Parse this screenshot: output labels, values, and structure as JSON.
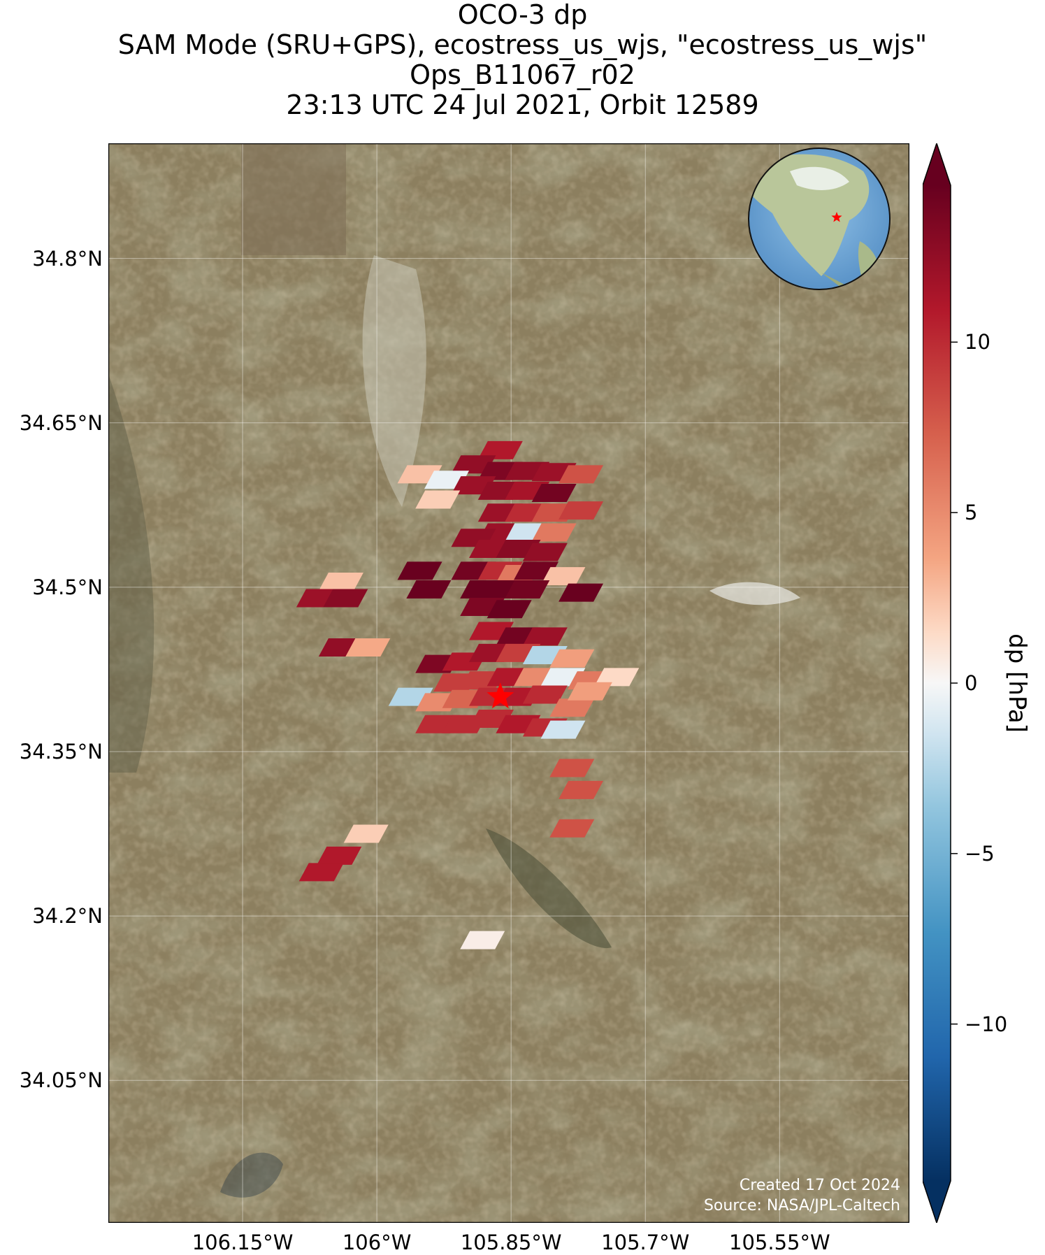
{
  "title": {
    "lines": [
      "OCO-3 dp",
      "SAM Mode (SRU+GPS), ecostress_us_wjs, \"ecostress_us_wjs\"",
      "Ops_B11067_r02",
      "23:13 UTC 24 Jul 2021, Orbit 12589"
    ]
  },
  "map": {
    "lat_ticks": [
      {
        "label": "34.8°N",
        "value": 34.8
      },
      {
        "label": "34.65°N",
        "value": 34.65
      },
      {
        "label": "34.5°N",
        "value": 34.5
      },
      {
        "label": "34.35°N",
        "value": 34.35
      },
      {
        "label": "34.2°N",
        "value": 34.2
      },
      {
        "label": "34.05°N",
        "value": 34.05
      }
    ],
    "lon_ticks": [
      {
        "label": "106.15°W",
        "value": -106.15
      },
      {
        "label": "106°W",
        "value": -106.0
      },
      {
        "label": "105.85°W",
        "value": -105.85
      },
      {
        "label": "105.7°W",
        "value": -105.7
      },
      {
        "label": "105.55°W",
        "value": -105.55
      }
    ],
    "extent": {
      "lon": [
        -106.3,
        -105.405
      ],
      "lat": [
        33.92,
        34.905
      ]
    },
    "target": {
      "lon": -105.862,
      "lat": 34.4,
      "marker": "red-star",
      "color": "#ff0000"
    },
    "basemap": "satellite-imagery",
    "grid": true,
    "inset": {
      "type": "globe",
      "center": "North America",
      "marker": "red-star"
    }
  },
  "colorbar": {
    "label": "dp [hPa]",
    "ticks": [
      {
        "label": "10",
        "value": 10
      },
      {
        "label": "5",
        "value": 5
      },
      {
        "label": "0",
        "value": 0
      },
      {
        "label": "−5",
        "value": -5
      },
      {
        "label": "−10",
        "value": -10
      }
    ],
    "range": [
      -14.6,
      14.6
    ],
    "colormap": "RdBu_r",
    "extend": "both"
  },
  "credit": {
    "created": "Created 17 Oct 2024",
    "source": "Source: NASA/JPL-Caltech"
  },
  "footprints": [
    {
      "lon": -105.862,
      "lat": 34.625,
      "dp": 11
    },
    {
      "lon": -105.892,
      "lat": 34.612,
      "dp": 12.5
    },
    {
      "lon": -105.862,
      "lat": 34.606,
      "dp": 13.5
    },
    {
      "lon": -105.832,
      "lat": 34.606,
      "dp": 12.5
    },
    {
      "lon": -105.802,
      "lat": 34.605,
      "dp": 12
    },
    {
      "lon": -105.772,
      "lat": 34.603,
      "dp": 8
    },
    {
      "lon": -105.952,
      "lat": 34.603,
      "dp": 2.5
    },
    {
      "lon": -105.922,
      "lat": 34.598,
      "dp": -0.5
    },
    {
      "lon": -105.892,
      "lat": 34.593,
      "dp": 12
    },
    {
      "lon": -105.862,
      "lat": 34.588,
      "dp": 12.5
    },
    {
      "lon": -105.832,
      "lat": 34.588,
      "dp": 11.5
    },
    {
      "lon": -105.802,
      "lat": 34.586,
      "dp": 14
    },
    {
      "lon": -105.932,
      "lat": 34.58,
      "dp": 2
    },
    {
      "lon": -105.862,
      "lat": 34.568,
      "dp": 12
    },
    {
      "lon": -105.832,
      "lat": 34.568,
      "dp": 10
    },
    {
      "lon": -105.802,
      "lat": 34.568,
      "dp": 8
    },
    {
      "lon": -105.772,
      "lat": 34.57,
      "dp": 9
    },
    {
      "lon": -105.862,
      "lat": 34.55,
      "dp": 12
    },
    {
      "lon": -105.832,
      "lat": 34.55,
      "dp": -1.5
    },
    {
      "lon": -105.802,
      "lat": 34.55,
      "dp": 6
    },
    {
      "lon": -105.892,
      "lat": 34.545,
      "dp": 12.5
    },
    {
      "lon": -105.872,
      "lat": 34.535,
      "dp": 12
    },
    {
      "lon": -105.842,
      "lat": 34.535,
      "dp": 13
    },
    {
      "lon": -105.812,
      "lat": 34.532,
      "dp": 12.5
    },
    {
      "lon": -105.892,
      "lat": 34.515,
      "dp": 14
    },
    {
      "lon": -105.862,
      "lat": 34.515,
      "dp": 10
    },
    {
      "lon": -105.842,
      "lat": 34.512,
      "dp": 6
    },
    {
      "lon": -105.822,
      "lat": 34.515,
      "dp": 14
    },
    {
      "lon": -105.792,
      "lat": 34.51,
      "dp": 2.5
    },
    {
      "lon": -105.952,
      "lat": 34.515,
      "dp": 14.5
    },
    {
      "lon": -105.882,
      "lat": 34.498,
      "dp": 14.5
    },
    {
      "lon": -105.852,
      "lat": 34.498,
      "dp": 14.5
    },
    {
      "lon": -105.832,
      "lat": 34.498,
      "dp": 14
    },
    {
      "lon": -105.772,
      "lat": 34.495,
      "dp": 14.5
    },
    {
      "lon": -105.942,
      "lat": 34.498,
      "dp": 14.5
    },
    {
      "lon": -105.882,
      "lat": 34.482,
      "dp": 13.5
    },
    {
      "lon": -105.852,
      "lat": 34.48,
      "dp": 14.5
    },
    {
      "lon": -106.04,
      "lat": 34.505,
      "dp": 2.5
    },
    {
      "lon": -106.065,
      "lat": 34.49,
      "dp": 12
    },
    {
      "lon": -106.035,
      "lat": 34.49,
      "dp": 13
    },
    {
      "lon": -106.04,
      "lat": 34.445,
      "dp": 12.5
    },
    {
      "lon": -106.01,
      "lat": 34.445,
      "dp": 3.5
    },
    {
      "lon": -105.872,
      "lat": 34.46,
      "dp": 11
    },
    {
      "lon": -105.842,
      "lat": 34.455,
      "dp": 14
    },
    {
      "lon": -105.812,
      "lat": 34.455,
      "dp": 12
    },
    {
      "lon": -105.932,
      "lat": 34.43,
      "dp": 13.5
    },
    {
      "lon": -105.902,
      "lat": 34.432,
      "dp": 11
    },
    {
      "lon": -105.872,
      "lat": 34.44,
      "dp": 12
    },
    {
      "lon": -105.842,
      "lat": 34.44,
      "dp": 9
    },
    {
      "lon": -105.812,
      "lat": 34.438,
      "dp": -2.5
    },
    {
      "lon": -105.782,
      "lat": 34.435,
      "dp": 4
    },
    {
      "lon": -105.912,
      "lat": 34.413,
      "dp": 9
    },
    {
      "lon": -105.882,
      "lat": 34.415,
      "dp": 9
    },
    {
      "lon": -105.852,
      "lat": 34.418,
      "dp": 11
    },
    {
      "lon": -105.822,
      "lat": 34.418,
      "dp": 5
    },
    {
      "lon": -105.792,
      "lat": 34.418,
      "dp": -0.5
    },
    {
      "lon": -105.762,
      "lat": 34.415,
      "dp": 6
    },
    {
      "lon": -105.732,
      "lat": 34.418,
      "dp": 1.5
    },
    {
      "lon": -105.962,
      "lat": 34.4,
      "dp": -2.5
    },
    {
      "lon": -105.932,
      "lat": 34.395,
      "dp": 5
    },
    {
      "lon": -105.902,
      "lat": 34.398,
      "dp": 7
    },
    {
      "lon": -105.872,
      "lat": 34.4,
      "dp": 10
    },
    {
      "lon": -105.842,
      "lat": 34.4,
      "dp": 11
    },
    {
      "lon": -105.812,
      "lat": 34.402,
      "dp": 10
    },
    {
      "lon": -105.782,
      "lat": 34.39,
      "dp": 6
    },
    {
      "lon": -105.762,
      "lat": 34.405,
      "dp": 4
    },
    {
      "lon": -105.932,
      "lat": 34.375,
      "dp": 10
    },
    {
      "lon": -105.902,
      "lat": 34.375,
      "dp": 10
    },
    {
      "lon": -105.872,
      "lat": 34.38,
      "dp": 10
    },
    {
      "lon": -105.842,
      "lat": 34.375,
      "dp": 11
    },
    {
      "lon": -105.812,
      "lat": 34.372,
      "dp": 10
    },
    {
      "lon": -105.792,
      "lat": 34.37,
      "dp": -1.5
    },
    {
      "lon": -105.782,
      "lat": 34.335,
      "dp": 8
    },
    {
      "lon": -105.772,
      "lat": 34.315,
      "dp": 8
    },
    {
      "lon": -105.782,
      "lat": 34.28,
      "dp": 8
    },
    {
      "lon": -106.012,
      "lat": 34.275,
      "dp": 2
    },
    {
      "lon": -106.042,
      "lat": 34.255,
      "dp": 11
    },
    {
      "lon": -106.062,
      "lat": 34.24,
      "dp": 11
    },
    {
      "lon": -105.882,
      "lat": 34.178,
      "dp": 0.5
    }
  ]
}
